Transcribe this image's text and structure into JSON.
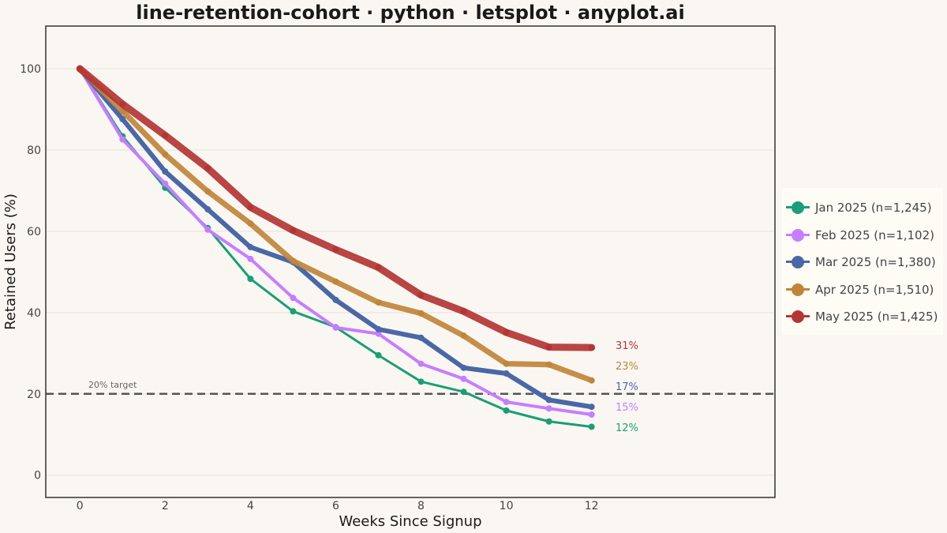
{
  "chart_title": "line-retention-cohort · python · letsplot · anyplot.ai",
  "chart_data": {
    "type": "line",
    "title": "line-retention-cohort · python · letsplot · anyplot.ai",
    "xlabel": "Weeks Since Signup",
    "ylabel": "Retained Users (%)",
    "xlim": [
      -0.8,
      16.3
    ],
    "ylim": [
      -5.5,
      110.5
    ],
    "x_ticks": [
      0,
      2,
      4,
      6,
      8,
      10,
      12
    ],
    "y_ticks": [
      0,
      20,
      40,
      60,
      80,
      100
    ],
    "x": [
      0,
      1,
      2,
      3,
      4,
      5,
      6,
      7,
      8,
      9,
      10,
      11,
      12
    ],
    "grid": true,
    "legend_position": "right",
    "series": [
      {
        "name": "Jan 2025 (n=1,245)",
        "color": "#1A9E77",
        "values": [
          100,
          83.4,
          70.7,
          60.8,
          48.3,
          40.3,
          36.4,
          29.5,
          23.0,
          20.5,
          15.9,
          13.2,
          11.9
        ],
        "end_label": "12%"
      },
      {
        "name": "Feb 2025 (n=1,102)",
        "color": "#C77DFF",
        "values": [
          100,
          82.6,
          71.7,
          60.4,
          53.2,
          43.6,
          36.3,
          34.8,
          27.4,
          23.7,
          18.0,
          16.4,
          14.9
        ],
        "end_label": "15%"
      },
      {
        "name": "Mar 2025 (n=1,380)",
        "color": "#4A67A6",
        "values": [
          100,
          87.6,
          74.7,
          65.4,
          56.1,
          52.4,
          43.1,
          35.9,
          33.8,
          26.4,
          25.0,
          18.5,
          16.8
        ],
        "end_label": "17%"
      },
      {
        "name": "Apr 2025 (n=1,510)",
        "color": "#C0843B",
        "values": [
          100,
          89.6,
          78.9,
          69.8,
          61.9,
          52.7,
          47.6,
          42.5,
          39.8,
          34.3,
          27.4,
          27.2,
          23.3
        ],
        "end_label": "23%"
      },
      {
        "name": "May 2025 (n=1,425)",
        "color": "#B33535",
        "values": [
          100,
          91.3,
          83.6,
          75.5,
          65.9,
          60.2,
          55.5,
          51.1,
          44.3,
          40.3,
          35.1,
          31.5,
          31.4
        ],
        "end_label": "31%"
      }
    ],
    "reference_line": {
      "y": 20,
      "label": "20% target"
    }
  }
}
